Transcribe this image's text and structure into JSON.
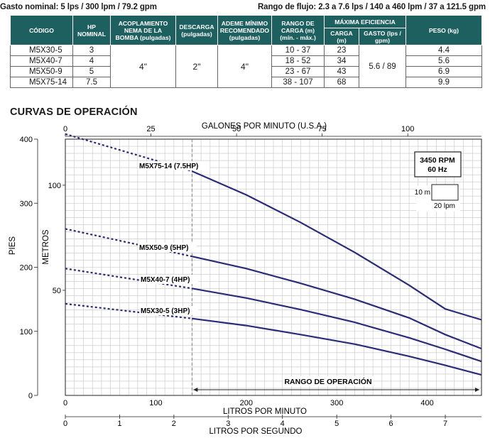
{
  "header": {
    "left": "Gasto nominal: 5 lps / 300 lpm / 79.2 gpm",
    "right": "Rango de flujo: 2.3 a 7.6 lps / 140 a 460 lpm / 37 a 121.5 gpm"
  },
  "table": {
    "headers": {
      "code": "CÓDIGO",
      "hp": "HP NOMINAL",
      "coupling": "ACOPLAMIENTO NEMA DE LA BOMBA (pulgadas)",
      "discharge": "DESCARGA (pulgadas)",
      "casing": "ADEME MÍNIMO RECOMENDADO (pulgadas)",
      "head_range": "RANGO DE CARGA (m) (mín. - máx.)",
      "max_eff": "MÁXIMA EFICIENCIA",
      "load": "CARGA (m)",
      "flow": "GASTO (lps / gpm)",
      "weight": "PESO (kg)"
    },
    "coupling": "4\"",
    "discharge": "2\"",
    "casing": "4\"",
    "flow": "5.6 / 89",
    "rows": [
      {
        "code": "M5X30-5",
        "hp": "3",
        "range": "10 - 37",
        "load": "23",
        "weight": "4.4"
      },
      {
        "code": "M5X40-7",
        "hp": "4",
        "range": "18 - 52",
        "load": "34",
        "weight": "5.6"
      },
      {
        "code": "M5X50-9",
        "hp": "5",
        "range": "23 - 67",
        "load": "43",
        "weight": "6.9"
      },
      {
        "code": "M5X75-14",
        "hp": "7.5",
        "range": "38 - 107",
        "load": "68",
        "weight": "9.9"
      }
    ]
  },
  "chart_title": "CURVAS DE OPERACIÓN",
  "chart_data": {
    "type": "line",
    "xlabel": "LITROS POR MINUTO",
    "xlim": [
      0,
      460
    ],
    "x_ticks": [
      0,
      100,
      200,
      300,
      400
    ],
    "x_tick_labels": [
      "0",
      "100",
      "200",
      "300",
      "400"
    ],
    "ylabel_left": "PIES",
    "ylim_ft": [
      0,
      400
    ],
    "y_ticks_ft": [
      0,
      100,
      200,
      300,
      400
    ],
    "y_tick_labels_ft": [
      "0",
      "100",
      "200",
      "300",
      "400"
    ],
    "ylabel_m": "METROS",
    "y_ticks_m": [
      50,
      100
    ],
    "y_tick_labels_m": [
      "50",
      "100"
    ],
    "top_axis": {
      "label": "GALONES POR MINUTO (U.S.A.)",
      "ticks": [
        0,
        25,
        50,
        75,
        100
      ],
      "tick_labels": [
        "0",
        "25",
        "50",
        "75",
        "100"
      ]
    },
    "bottom_axis2": {
      "label": "LITROS POR SEGUNDO",
      "ticks": [
        0,
        1,
        2,
        3,
        4,
        5,
        6,
        7
      ],
      "tick_labels": [
        "0",
        "1",
        "2",
        "3",
        "4",
        "5",
        "6",
        "7"
      ]
    },
    "operating_range": {
      "start": 140,
      "end": 460,
      "label": "RANGO DE OPERACIÓN"
    },
    "info_box": {
      "line1": "3450 RPM",
      "line2": "60 Hz"
    },
    "scale_box": {
      "vertical": "10 m",
      "horizontal": "20 lpm"
    },
    "grid": true,
    "series": [
      {
        "name": "M5X75-14 (7.5HP)",
        "x": [
          0,
          140,
          200,
          260,
          320,
          380,
          420,
          460
        ],
        "y_ft": [
          408,
          350,
          313,
          270,
          223,
          172,
          135,
          118
        ]
      },
      {
        "name": "M5X50-9 (5HP)",
        "x": [
          0,
          140,
          200,
          260,
          320,
          380,
          420,
          460
        ],
        "y_ft": [
          260,
          217,
          198,
          175,
          150,
          121,
          95,
          73
        ]
      },
      {
        "name": "M5X40-7 (4HP)",
        "x": [
          0,
          140,
          200,
          260,
          320,
          380,
          420,
          460
        ],
        "y_ft": [
          198,
          167,
          152,
          134,
          114,
          90,
          72,
          53
        ]
      },
      {
        "name": "M5X30-5 (3HP)",
        "x": [
          0,
          140,
          200,
          260,
          320,
          380,
          420,
          460
        ],
        "y_ft": [
          143,
          120,
          109,
          95,
          80,
          61,
          47,
          32
        ]
      }
    ]
  }
}
